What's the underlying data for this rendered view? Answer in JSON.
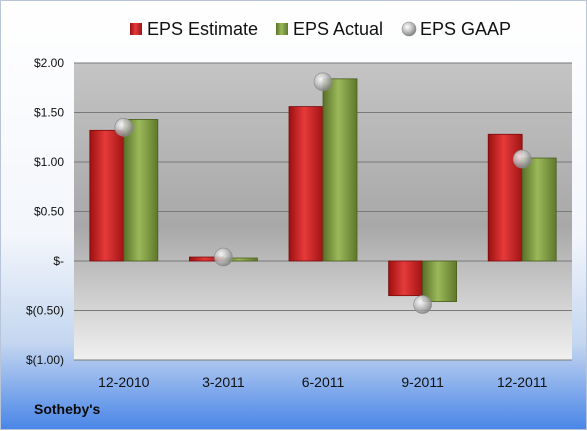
{
  "company_name": "Sotheby's",
  "chart_data": {
    "type": "bar",
    "categories": [
      "12-2010",
      "3-2011",
      "6-2011",
      "9-2011",
      "12-2011"
    ],
    "series": [
      {
        "name": "EPS Estimate",
        "values": [
          1.32,
          0.04,
          1.56,
          -0.35,
          1.28
        ],
        "color": "#cc1f1f",
        "kind": "bar"
      },
      {
        "name": "EPS Actual",
        "values": [
          1.43,
          0.03,
          1.84,
          -0.41,
          1.04
        ],
        "color": "#77933c",
        "kind": "bar"
      },
      {
        "name": "EPS GAAP",
        "values": [
          1.35,
          0.04,
          1.81,
          -0.44,
          1.03
        ],
        "color": "#a6a6a6",
        "kind": "marker"
      }
    ],
    "yticks": [
      {
        "value": 2.0,
        "label": "$2.00"
      },
      {
        "value": 1.5,
        "label": "$1.50"
      },
      {
        "value": 1.0,
        "label": "$1.00"
      },
      {
        "value": 0.5,
        "label": "$0.50"
      },
      {
        "value": 0.0,
        "label": "$-"
      },
      {
        "value": -0.5,
        "label": "$(0.50)"
      },
      {
        "value": -1.0,
        "label": "$(1.00)"
      }
    ],
    "ylim": [
      -1.0,
      2.0
    ],
    "grid": true,
    "legend_position": "top"
  }
}
